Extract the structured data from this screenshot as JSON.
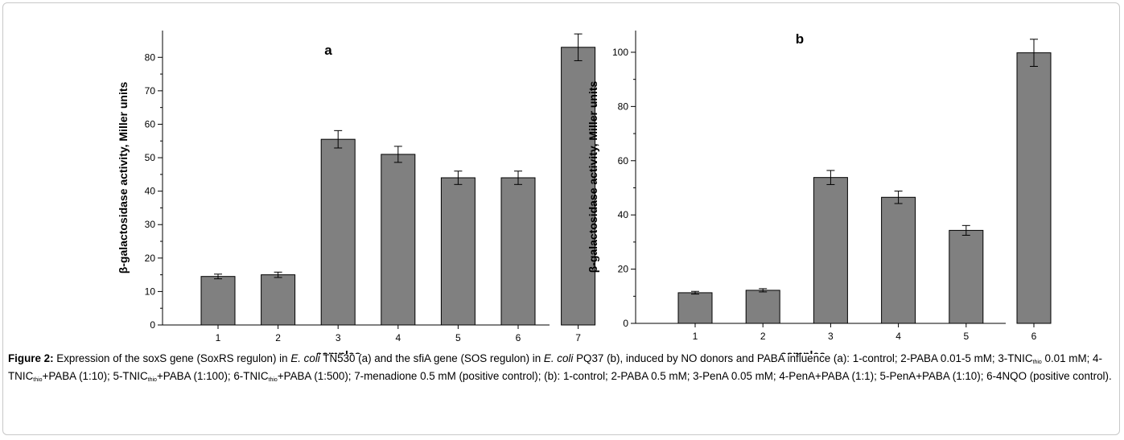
{
  "chart_data": [
    {
      "type": "bar",
      "panel_label": "a",
      "ylabel": "β-galactosidase activity, Miller units",
      "xlabel": "samples",
      "categories": [
        "1",
        "2",
        "3",
        "4",
        "5",
        "6",
        "7"
      ],
      "values": [
        14.5,
        15.0,
        55.5,
        51.0,
        44.0,
        44.0,
        83.0
      ],
      "errors": [
        0.7,
        0.8,
        2.6,
        2.4,
        2.0,
        2.0,
        4.0
      ],
      "ylim": [
        0,
        88
      ],
      "yticks": [
        0,
        10,
        20,
        30,
        40,
        50,
        60,
        70,
        80
      ],
      "bar_color": "#808080"
    },
    {
      "type": "bar",
      "panel_label": "b",
      "ylabel": "β-galactosidase activity, Miller units",
      "xlabel": "samples",
      "categories": [
        "1",
        "2",
        "3",
        "4",
        "5",
        "6"
      ],
      "values": [
        11.3,
        12.2,
        53.8,
        46.5,
        34.3,
        99.8
      ],
      "errors": [
        0.5,
        0.6,
        2.6,
        2.3,
        1.8,
        5.0
      ],
      "ylim": [
        0,
        108
      ],
      "yticks": [
        0,
        20,
        40,
        60,
        80,
        100
      ],
      "bar_color": "#808080"
    }
  ],
  "caption": {
    "label": "Figure 2:",
    "text": {
      "p1": " Expression of the soxS gene (SoxRS regulon) in ",
      "ecoli1": "E. coli",
      "p2": " TN530 (a) and the sfiA gene (SOS regulon) in ",
      "ecoli2": "E. coli",
      "p3": " PQ37 (b), induced by NO donors and PABA influence (a): 1-control; 2-PABA 0.01-5 mM; 3-TNIC",
      "sub1": "thio",
      "p4": " 0.01 mM; 4-TNIC",
      "sub2": "thio",
      "p5": "+PABA (1:10); 5-TNIC",
      "sub3": "thio",
      "p6": "+PABA (1:100); 6-TNIC",
      "sub4": "thio",
      "p7": "+PABA (1:500); 7-menadione 0.5 mM (positive control); (b): 1-control; 2-PABA 0.5 mM; 3-PenA 0.05 mM; 4-PenA+PABA (1:1); 5-PenA+PABA (1:10); 6-4NQO (positive control)."
    }
  }
}
